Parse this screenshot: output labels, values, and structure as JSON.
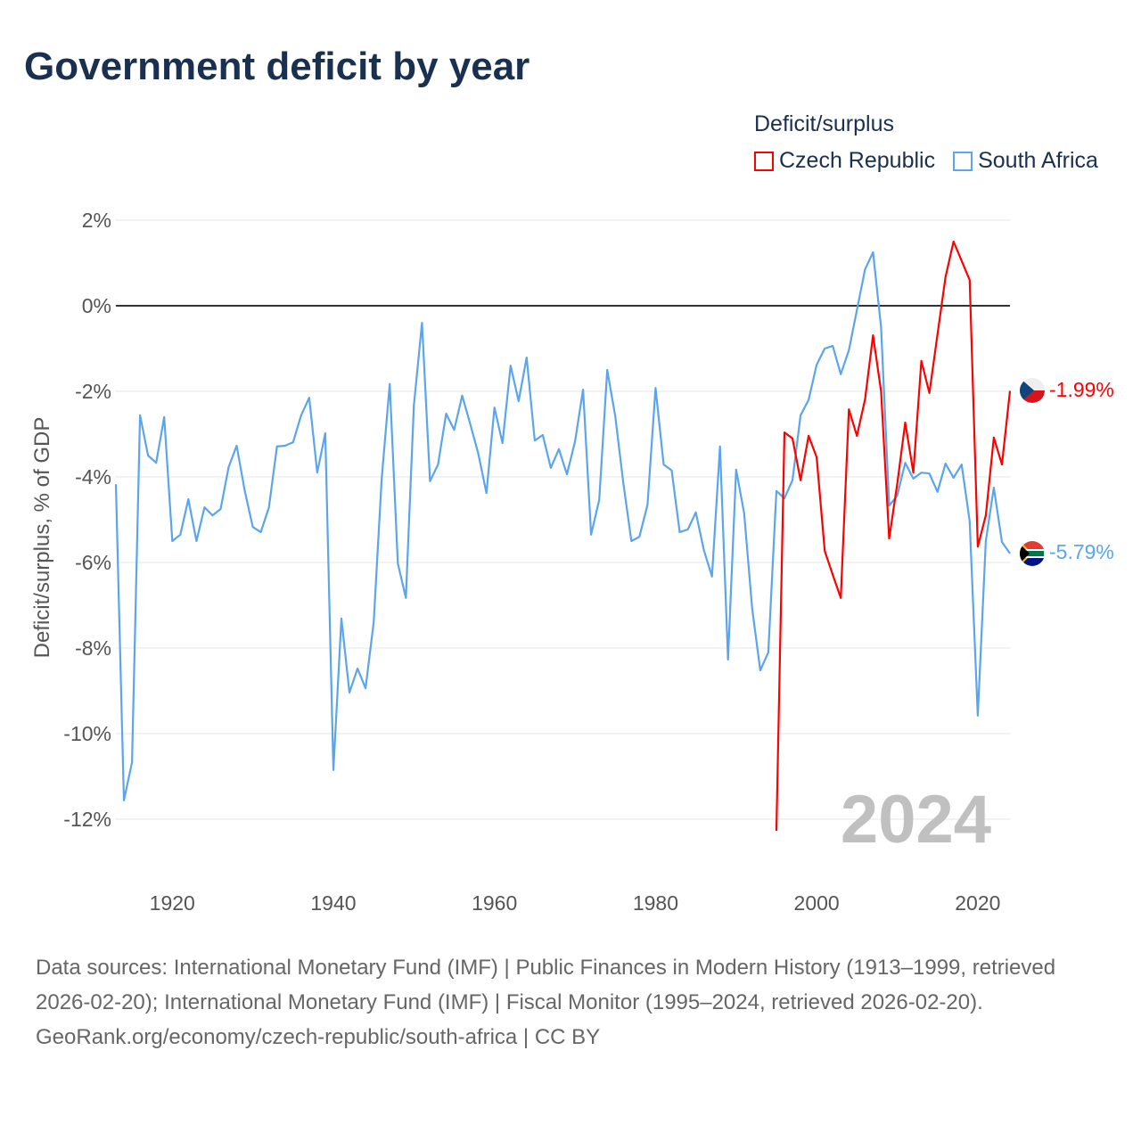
{
  "title": "Government deficit by year",
  "legend": {
    "title": "Deficit/surplus",
    "items": [
      {
        "label": "Czech Republic",
        "color": "#ff0000"
      },
      {
        "label": "South Africa",
        "color": "#5aa5ec"
      }
    ]
  },
  "watermark_year": "2024",
  "end_labels": {
    "czech": "-1.99%",
    "south_africa": "-5.79%"
  },
  "source": {
    "line1": "Data sources: International Monetary Fund (IMF) | Public Finances in Modern History (1913–1999, retrieved 2026-02-20); International Monetary Fund (IMF) | Fiscal Monitor (1995–2024, retrieved 2026-02-20).",
    "line2": "GeoRank.org/economy/czech-republic/south-africa | CC BY"
  },
  "chart_data": {
    "type": "line",
    "title": "Government deficit by year",
    "xlabel": "",
    "ylabel": "Deficit/surplus, % of GDP",
    "xlim": [
      1913,
      2024
    ],
    "ylim": [
      -13,
      2
    ],
    "x_ticks": [
      1920,
      1940,
      1960,
      1980,
      2000,
      2020
    ],
    "y_ticks": [
      2,
      0,
      -2,
      -4,
      -6,
      -8,
      -10,
      -12
    ],
    "y_tick_labels": [
      "2%",
      "0%",
      "-2%",
      "-4%",
      "-6%",
      "-8%",
      "-10%",
      "-12%"
    ],
    "grid": true,
    "legend_position": "top-right",
    "series": [
      {
        "name": "Czech Republic",
        "color": "#ff0000",
        "start_year": 1995,
        "values": [
          -12.27,
          -2.96,
          -3.1,
          -4.08,
          -3.04,
          -3.54,
          -5.73,
          -6.29,
          -6.83,
          -2.42,
          -3.04,
          -2.19,
          -0.69,
          -2.0,
          -5.44,
          -4.17,
          -2.73,
          -3.9,
          -1.29,
          -2.04,
          -0.67,
          0.67,
          1.5,
          1.05,
          0.6,
          -5.63,
          -4.9,
          -3.08,
          -3.71,
          -1.99
        ]
      },
      {
        "name": "South Africa",
        "color": "#5aa5ec",
        "start_year": 1913,
        "values": [
          -4.17,
          -11.56,
          -10.67,
          -2.56,
          -3.5,
          -3.67,
          -2.6,
          -5.5,
          -5.35,
          -4.52,
          -5.5,
          -4.71,
          -4.9,
          -4.75,
          -3.77,
          -3.27,
          -4.33,
          -5.17,
          -5.29,
          -4.71,
          -3.29,
          -3.27,
          -3.19,
          -2.56,
          -2.15,
          -3.9,
          -2.98,
          -10.85,
          -7.31,
          -9.04,
          -8.48,
          -8.94,
          -7.4,
          -4.04,
          -1.83,
          -6.02,
          -6.83,
          -2.33,
          -0.4,
          -4.1,
          -3.71,
          -2.52,
          -2.9,
          -2.1,
          -2.77,
          -3.46,
          -4.38,
          -2.38,
          -3.21,
          -1.4,
          -2.23,
          -1.21,
          -3.15,
          -3.02,
          -3.79,
          -3.35,
          -3.94,
          -3.17,
          -1.96,
          -5.35,
          -4.54,
          -1.5,
          -2.58,
          -4.15,
          -5.5,
          -5.4,
          -4.65,
          -1.92,
          -3.71,
          -3.85,
          -5.29,
          -5.23,
          -4.83,
          -5.71,
          -6.33,
          -3.29,
          -8.27,
          -3.83,
          -4.85,
          -7.08,
          -8.52,
          -8.1,
          -4.33,
          -4.5,
          -4.08,
          -2.56,
          -2.2,
          -1.38,
          -1.0,
          -0.94,
          -1.6,
          -1.04,
          -0.1,
          0.85,
          1.25,
          -0.5,
          -4.67,
          -4.44,
          -3.67,
          -4.04,
          -3.9,
          -3.92,
          -4.35,
          -3.69,
          -4.02,
          -3.71,
          -5.04,
          -9.58,
          -5.5,
          -4.25,
          -5.52,
          -5.79
        ]
      }
    ]
  }
}
